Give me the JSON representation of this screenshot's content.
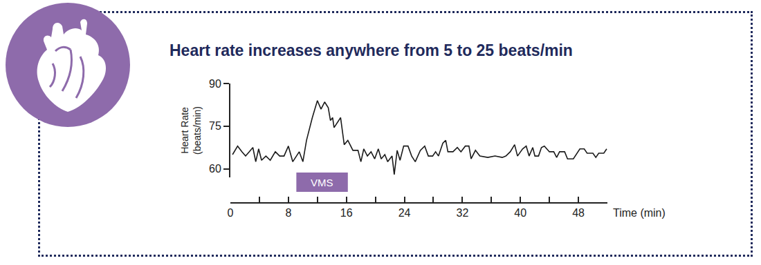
{
  "chart_data": {
    "type": "line",
    "title": "Heart rate increases anywhere from 5 to 25 beats/min",
    "x_label": "Time (min)",
    "y_label": [
      "Heart Rate",
      "(beats/min)"
    ],
    "color": "#1a1a1a",
    "x": [
      0.3,
      1.0,
      1.6,
      2.1,
      2.6,
      3.1,
      3.5,
      3.9,
      4.3,
      4.9,
      5.5,
      6.2,
      6.8,
      7.4,
      8.0,
      8.6,
      9.5,
      10.0,
      10.5,
      11.3,
      12.0,
      12.5,
      13.0,
      13.5,
      13.8,
      14.1,
      14.3,
      15.2,
      15.7,
      16.2,
      16.9,
      17.6,
      18.0,
      18.4,
      18.9,
      19.4,
      19.9,
      20.4,
      20.8,
      21.3,
      21.7,
      22.3,
      22.6,
      23.0,
      23.4,
      23.9,
      24.5,
      25.0,
      25.5,
      26.2,
      26.8,
      27.3,
      27.9,
      28.3,
      28.7,
      29.3,
      29.7,
      30.0,
      30.7,
      31.3,
      31.8,
      32.4,
      32.9,
      33.2,
      33.8,
      34.4,
      35.5,
      36.5,
      37.5,
      38.0,
      38.6,
      39.2,
      39.6,
      40.3,
      40.8,
      41.2,
      41.7,
      42.0,
      42.5,
      42.9,
      43.3,
      43.7,
      44.0,
      44.6,
      45.0,
      45.4,
      46.1,
      46.5,
      47.3,
      48.2,
      48.8,
      49.2,
      50.0,
      50.4,
      50.8,
      51.5,
      51.9
    ],
    "values": [
      65,
      68,
      66,
      64.5,
      66,
      67.5,
      62.5,
      67,
      63,
      64.5,
      63,
      66,
      64.5,
      64.5,
      68,
      62.5,
      66,
      62.5,
      70,
      78,
      84,
      81,
      83.5,
      81.5,
      77,
      78,
      74.5,
      78,
      68.5,
      70,
      66.5,
      66.5,
      62.5,
      67,
      64.5,
      66,
      63.5,
      67,
      63.5,
      65,
      62.5,
      64.5,
      58,
      66.5,
      63,
      68,
      68,
      64.5,
      62.5,
      66.5,
      68,
      64.5,
      64.5,
      66,
      64.5,
      69,
      70,
      66,
      66,
      67.5,
      66,
      68,
      68,
      63.5,
      66.5,
      64.5,
      64,
      64.5,
      64,
      64.5,
      66,
      68.5,
      64.5,
      67,
      68,
      64.5,
      67.5,
      64.5,
      64.5,
      67.5,
      68,
      67,
      66,
      66,
      64,
      66,
      66,
      63.5,
      63.5,
      67,
      67,
      65.5,
      65.5,
      64,
      65.5,
      65.5,
      67
    ],
    "xlim": [
      0,
      52
    ],
    "xticks": [
      0,
      8,
      16,
      24,
      32,
      40,
      48
    ],
    "ylim": [
      57,
      90
    ],
    "yticks": [
      60,
      75,
      90
    ],
    "grid": false,
    "annotations": [
      {
        "text": "VMS",
        "x0": 9.1,
        "x1": 16.2,
        "color": "#8e6bab"
      }
    ]
  }
}
